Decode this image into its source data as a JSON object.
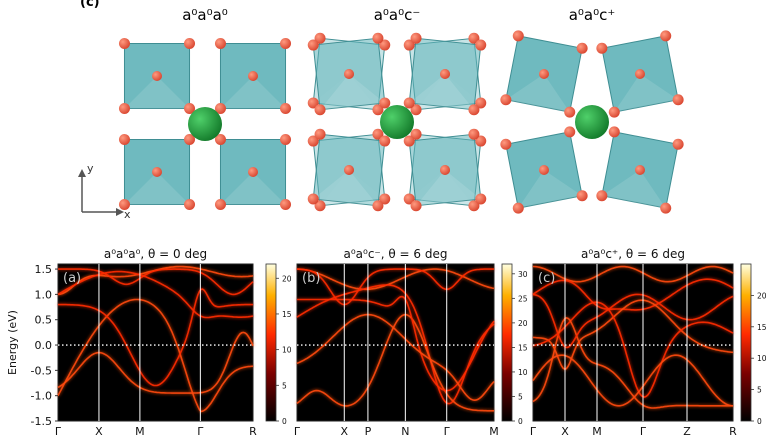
{
  "figure": {
    "panel_tag": "(c)",
    "structure_titles": [
      "a⁰a⁰a⁰",
      "a⁰a⁰c⁻",
      "a⁰a⁰c⁺"
    ],
    "axes_labels": {
      "y": "y",
      "x": "x"
    }
  },
  "colors": {
    "octahedron": "#5fb3b8",
    "octahedron_edge": "#3f8e93",
    "oxygen": "#e0553f",
    "cation": "#1f9a3a",
    "band_bg": "#000000",
    "band_line": "#ff2a00",
    "band_hot": "#ffe066",
    "dotted": "#ffffff"
  },
  "chart_data": [
    {
      "type": "heatmap",
      "title": "a⁰a⁰a⁰, θ = 0 deg",
      "panel_label": "(a)",
      "ylabel": "Energy (eV)",
      "ylim": [
        -1.5,
        1.6
      ],
      "yticks": [
        "1.5",
        "1.0",
        "0.5",
        "0.0",
        "-0.5",
        "-1.0",
        "-1.5"
      ],
      "ytick_values": [
        1.5,
        1.0,
        0.5,
        0.0,
        -0.5,
        -1.0,
        -1.5
      ],
      "kpoints": [
        "Γ",
        "X",
        "M",
        "Γ",
        "R"
      ],
      "kpoint_positions": [
        0,
        0.21,
        0.42,
        0.73,
        1.0
      ],
      "colorbar": {
        "ticks": [
          "20",
          "15",
          "10",
          "5",
          "0"
        ],
        "tick_values": [
          20,
          15,
          10,
          5,
          0
        ],
        "max": 22
      },
      "fermi_level": 0.0
    },
    {
      "type": "heatmap",
      "title": "a⁰a⁰c⁻, θ = 6 deg",
      "panel_label": "(b)",
      "ylim": [
        -1.5,
        1.6
      ],
      "kpoints": [
        "Γ",
        "X",
        "P",
        "N",
        "Γ",
        "M"
      ],
      "kpoint_positions": [
        0,
        0.24,
        0.36,
        0.55,
        0.76,
        1.0
      ],
      "colorbar": {
        "ticks": [
          "30",
          "25",
          "20",
          "15",
          "10",
          "5",
          "0"
        ],
        "tick_values": [
          30,
          25,
          20,
          15,
          10,
          5,
          0
        ],
        "max": 32
      },
      "fermi_level": 0.0
    },
    {
      "type": "heatmap",
      "title": "a⁰a⁰c⁺, θ = 6 deg",
      "panel_label": "(c)",
      "ylim": [
        -1.5,
        1.6
      ],
      "kpoints": [
        "Γ",
        "X",
        "M",
        "Γ",
        "Z",
        "R"
      ],
      "kpoint_positions": [
        0,
        0.16,
        0.32,
        0.55,
        0.77,
        1.0
      ],
      "colorbar": {
        "ticks": [
          "20",
          "15",
          "10",
          "5",
          "0"
        ],
        "tick_values": [
          20,
          15,
          10,
          5,
          0
        ],
        "max": 25
      },
      "fermi_level": 0.0
    }
  ]
}
